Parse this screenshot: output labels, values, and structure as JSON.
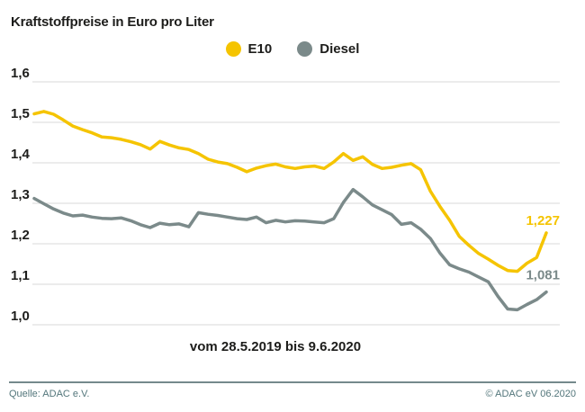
{
  "header": {
    "title": "Kraftstoffpreise in Euro pro Liter"
  },
  "legend": {
    "items": [
      {
        "label": "E10",
        "color": "#f5c400"
      },
      {
        "label": "Diesel",
        "color": "#7b8a8a"
      }
    ]
  },
  "chart_data": {
    "type": "line",
    "title": "Kraftstoffpreise in Euro pro Liter",
    "x_caption": "vom 28.5.2019 bis 9.6.2020",
    "x_range": [
      "28.5.2019",
      "9.6.2020"
    ],
    "x_unit": "weekly",
    "ylim": [
      1.0,
      1.6
    ],
    "grid": true,
    "legend_position": "top",
    "y_ticks": [
      {
        "label": "1,6",
        "v": 1.6
      },
      {
        "label": "1,5",
        "v": 1.5
      },
      {
        "label": "1,4",
        "v": 1.4
      },
      {
        "label": "1,3",
        "v": 1.3
      },
      {
        "label": "1,2",
        "v": 1.2
      },
      {
        "label": "1,1",
        "v": 1.1
      },
      {
        "label": "1,0",
        "v": 1.0
      }
    ],
    "series": [
      {
        "name": "E10",
        "color": "#f5c400",
        "end_label": "1,227",
        "end_value": 1.227,
        "values": [
          1.521,
          1.527,
          1.52,
          1.506,
          1.491,
          1.482,
          1.474,
          1.464,
          1.462,
          1.458,
          1.452,
          1.445,
          1.434,
          1.453,
          1.444,
          1.437,
          1.433,
          1.423,
          1.409,
          1.402,
          1.398,
          1.389,
          1.378,
          1.387,
          1.393,
          1.397,
          1.39,
          1.386,
          1.39,
          1.392,
          1.386,
          1.402,
          1.423,
          1.406,
          1.415,
          1.396,
          1.386,
          1.389,
          1.394,
          1.398,
          1.383,
          1.33,
          1.292,
          1.258,
          1.218,
          1.196,
          1.176,
          1.162,
          1.147,
          1.134,
          1.132,
          1.152,
          1.166,
          1.227
        ]
      },
      {
        "name": "Diesel",
        "color": "#7b8a8a",
        "end_label": "1,081",
        "end_value": 1.081,
        "values": [
          1.312,
          1.299,
          1.286,
          1.276,
          1.269,
          1.271,
          1.266,
          1.263,
          1.262,
          1.264,
          1.257,
          1.247,
          1.24,
          1.251,
          1.247,
          1.249,
          1.242,
          1.277,
          1.273,
          1.27,
          1.266,
          1.262,
          1.26,
          1.266,
          1.252,
          1.258,
          1.254,
          1.257,
          1.256,
          1.254,
          1.252,
          1.262,
          1.302,
          1.334,
          1.316,
          1.296,
          1.284,
          1.272,
          1.248,
          1.252,
          1.236,
          1.213,
          1.177,
          1.148,
          1.138,
          1.13,
          1.118,
          1.106,
          1.07,
          1.039,
          1.037,
          1.05,
          1.062,
          1.081
        ]
      }
    ],
    "gridline_color": "#d9d9d9",
    "tick_label_color": "#1d1d1b"
  },
  "footer": {
    "source": "Quelle: ADAC e.V.",
    "copyright": "© ADAC eV 06.2020"
  }
}
